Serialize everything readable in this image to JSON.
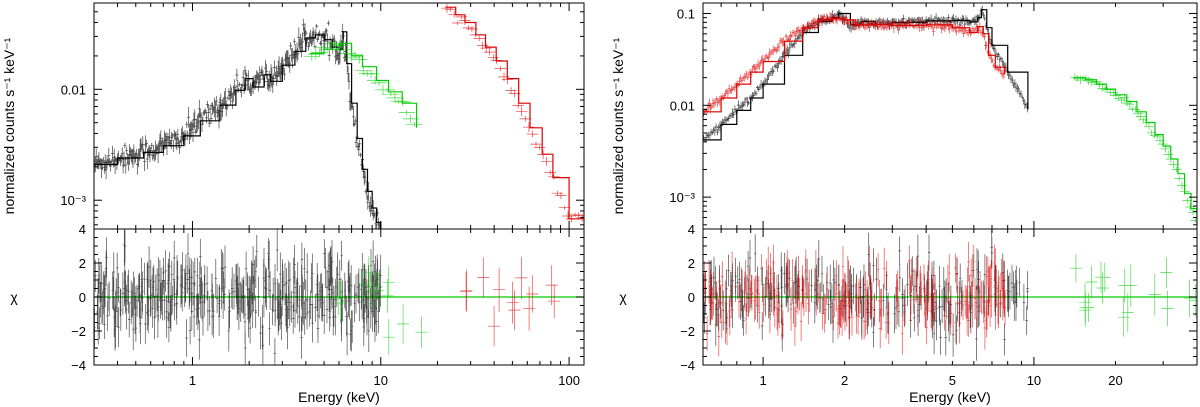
{
  "chart_data": [
    {
      "id": "left",
      "type": "line",
      "x_scale": "log",
      "xlim": [
        0.3,
        120
      ],
      "xlabel": "Energy (keV)",
      "x_ticks": [
        1,
        10,
        100
      ],
      "x_tick_labels": [
        "1",
        "10",
        "100"
      ],
      "top": {
        "y_scale": "log",
        "ylim": [
          0.00055,
          0.06
        ],
        "ylabel": "normalized counts s⁻¹ keV⁻¹",
        "y_ticks": [
          0.01,
          0.001
        ],
        "y_tick_labels": [
          "0.01",
          "10⁻³"
        ],
        "series": [
          {
            "name": "black",
            "color": "#000000",
            "noise": 0.14,
            "x": [
              0.3,
              0.4,
              0.55,
              0.7,
              0.9,
              1.1,
              1.4,
              1.7,
              1.9,
              2.1,
              2.4,
              2.6,
              3.0,
              3.5,
              4.0,
              4.5,
              5.0,
              5.5,
              6.0,
              6.3,
              6.6,
              7.0,
              7.5,
              8.0,
              8.5,
              9.0,
              9.5,
              10.0
            ],
            "y": [
              0.0021,
              0.0024,
              0.0027,
              0.0031,
              0.0038,
              0.0052,
              0.0072,
              0.0098,
              0.0125,
              0.0105,
              0.0135,
              0.0118,
              0.0165,
              0.022,
              0.029,
              0.031,
              0.028,
              0.024,
              0.023,
              0.033,
              0.017,
              0.0075,
              0.0036,
              0.0019,
              0.0012,
              0.00085,
              0.00063,
              0.00055
            ]
          },
          {
            "name": "green",
            "color": "#00cc00",
            "noise": 0.06,
            "x": [
              4.2,
              5.0,
              6.0,
              7.0,
              8.0,
              9.5,
              11.0,
              13.0,
              15.5
            ],
            "y": [
              0.021,
              0.023,
              0.026,
              0.02,
              0.016,
              0.012,
              0.0095,
              0.0075,
              0.0045
            ]
          },
          {
            "name": "red",
            "color": "#dd0000",
            "noise": 0.05,
            "x": [
              22,
              25,
              28,
              32,
              36,
              41,
              47,
              54,
              62,
              72,
              82,
              100,
              120
            ],
            "y": [
              0.055,
              0.047,
              0.04,
              0.031,
              0.024,
              0.018,
              0.0125,
              0.0075,
              0.0045,
              0.0026,
              0.0016,
              0.00068,
              0.00068
            ]
          }
        ]
      },
      "bottom": {
        "ylim": [
          -4,
          4
        ],
        "ylabel": "χ",
        "y_ticks": [
          4,
          2,
          0,
          -2,
          -4
        ],
        "y_tick_labels": [
          "4",
          "2",
          "0",
          "−2",
          "−4"
        ],
        "zero_line_color": "#00cc00",
        "residuals": [
          {
            "name": "black",
            "color": "#000000",
            "xmin": 0.3,
            "xmax": 10.0,
            "count": 420,
            "spread": 1.0
          },
          {
            "name": "green",
            "color": "#00cc00",
            "xmin": 5.5,
            "xmax": 18,
            "count": 12,
            "spread": 0.7
          },
          {
            "name": "red",
            "color": "#dd0000",
            "xmin": 25,
            "xmax": 100,
            "count": 12,
            "spread": 0.9
          }
        ]
      }
    },
    {
      "id": "right",
      "type": "line",
      "x_scale": "log",
      "xlim": [
        0.6,
        40
      ],
      "xlabel": "Energy (keV)",
      "x_ticks": [
        1,
        2,
        5,
        10,
        20
      ],
      "x_tick_labels": [
        "1",
        "2",
        "5",
        "10",
        "20"
      ],
      "top": {
        "y_scale": "log",
        "ylim": [
          0.00045,
          0.13
        ],
        "ylabel": "normalized counts s⁻¹ keV⁻¹",
        "y_ticks": [
          0.1,
          0.01,
          0.001
        ],
        "y_tick_labels": [
          "0.1",
          "0.01",
          "10⁻³"
        ],
        "series": [
          {
            "name": "black",
            "color": "#000000",
            "noise": 0.05,
            "x": [
              0.6,
              0.7,
              0.8,
              0.9,
              1.0,
              1.2,
              1.4,
              1.6,
              1.8,
              1.9,
              2.1,
              2.3,
              2.6,
              3.0,
              4.0,
              5.0,
              5.8,
              6.2,
              6.4,
              6.7,
              7.0,
              8.0,
              9.5
            ],
            "y": [
              0.0042,
              0.0062,
              0.0088,
              0.012,
              0.017,
              0.035,
              0.062,
              0.082,
              0.09,
              0.1,
              0.075,
              0.082,
              0.076,
              0.08,
              0.083,
              0.084,
              0.081,
              0.09,
              0.11,
              0.07,
              0.045,
              0.023,
              0.009
            ]
          },
          {
            "name": "red",
            "color": "#dd0000",
            "noise": 0.05,
            "x": [
              0.6,
              0.7,
              0.8,
              0.9,
              1.0,
              1.2,
              1.4,
              1.6,
              1.8,
              2.0,
              2.2,
              2.5,
              3.0,
              4.0,
              5.0,
              5.8,
              6.2,
              6.5,
              6.8,
              7.2,
              7.8
            ],
            "y": [
              0.0085,
              0.012,
              0.017,
              0.023,
              0.03,
              0.05,
              0.07,
              0.085,
              0.088,
              0.085,
              0.075,
              0.076,
              0.074,
              0.075,
              0.07,
              0.062,
              0.072,
              0.06,
              0.035,
              0.026,
              0.022
            ]
          },
          {
            "name": "green",
            "color": "#00cc00",
            "noise": 0.04,
            "x": [
              14,
              15.5,
              17,
              18.5,
              20,
              22,
              24,
              26,
              28,
              30,
              32,
              34,
              36,
              38,
              40
            ],
            "y": [
              0.02,
              0.019,
              0.017,
              0.015,
              0.013,
              0.011,
              0.0085,
              0.0065,
              0.0048,
              0.0036,
              0.0026,
              0.0018,
              0.0011,
              0.00075,
              0.0005
            ]
          }
        ]
      },
      "bottom": {
        "ylim": [
          -4,
          4
        ],
        "ylabel": "χ",
        "y_ticks": [
          4,
          2,
          0,
          -2,
          -4
        ],
        "y_tick_labels": [
          "4",
          "2",
          "0",
          "−2",
          "−4"
        ],
        "zero_line_color": "#00cc00",
        "residuals": [
          {
            "name": "black",
            "color": "#000000",
            "xmin": 0.6,
            "xmax": 9.5,
            "count": 240,
            "spread": 1.0
          },
          {
            "name": "red",
            "color": "#dd0000",
            "xmin": 0.6,
            "xmax": 8.0,
            "count": 240,
            "spread": 1.0
          },
          {
            "name": "green",
            "color": "#00cc00",
            "xmin": 14,
            "xmax": 40,
            "count": 18,
            "spread": 0.9
          }
        ]
      }
    }
  ]
}
